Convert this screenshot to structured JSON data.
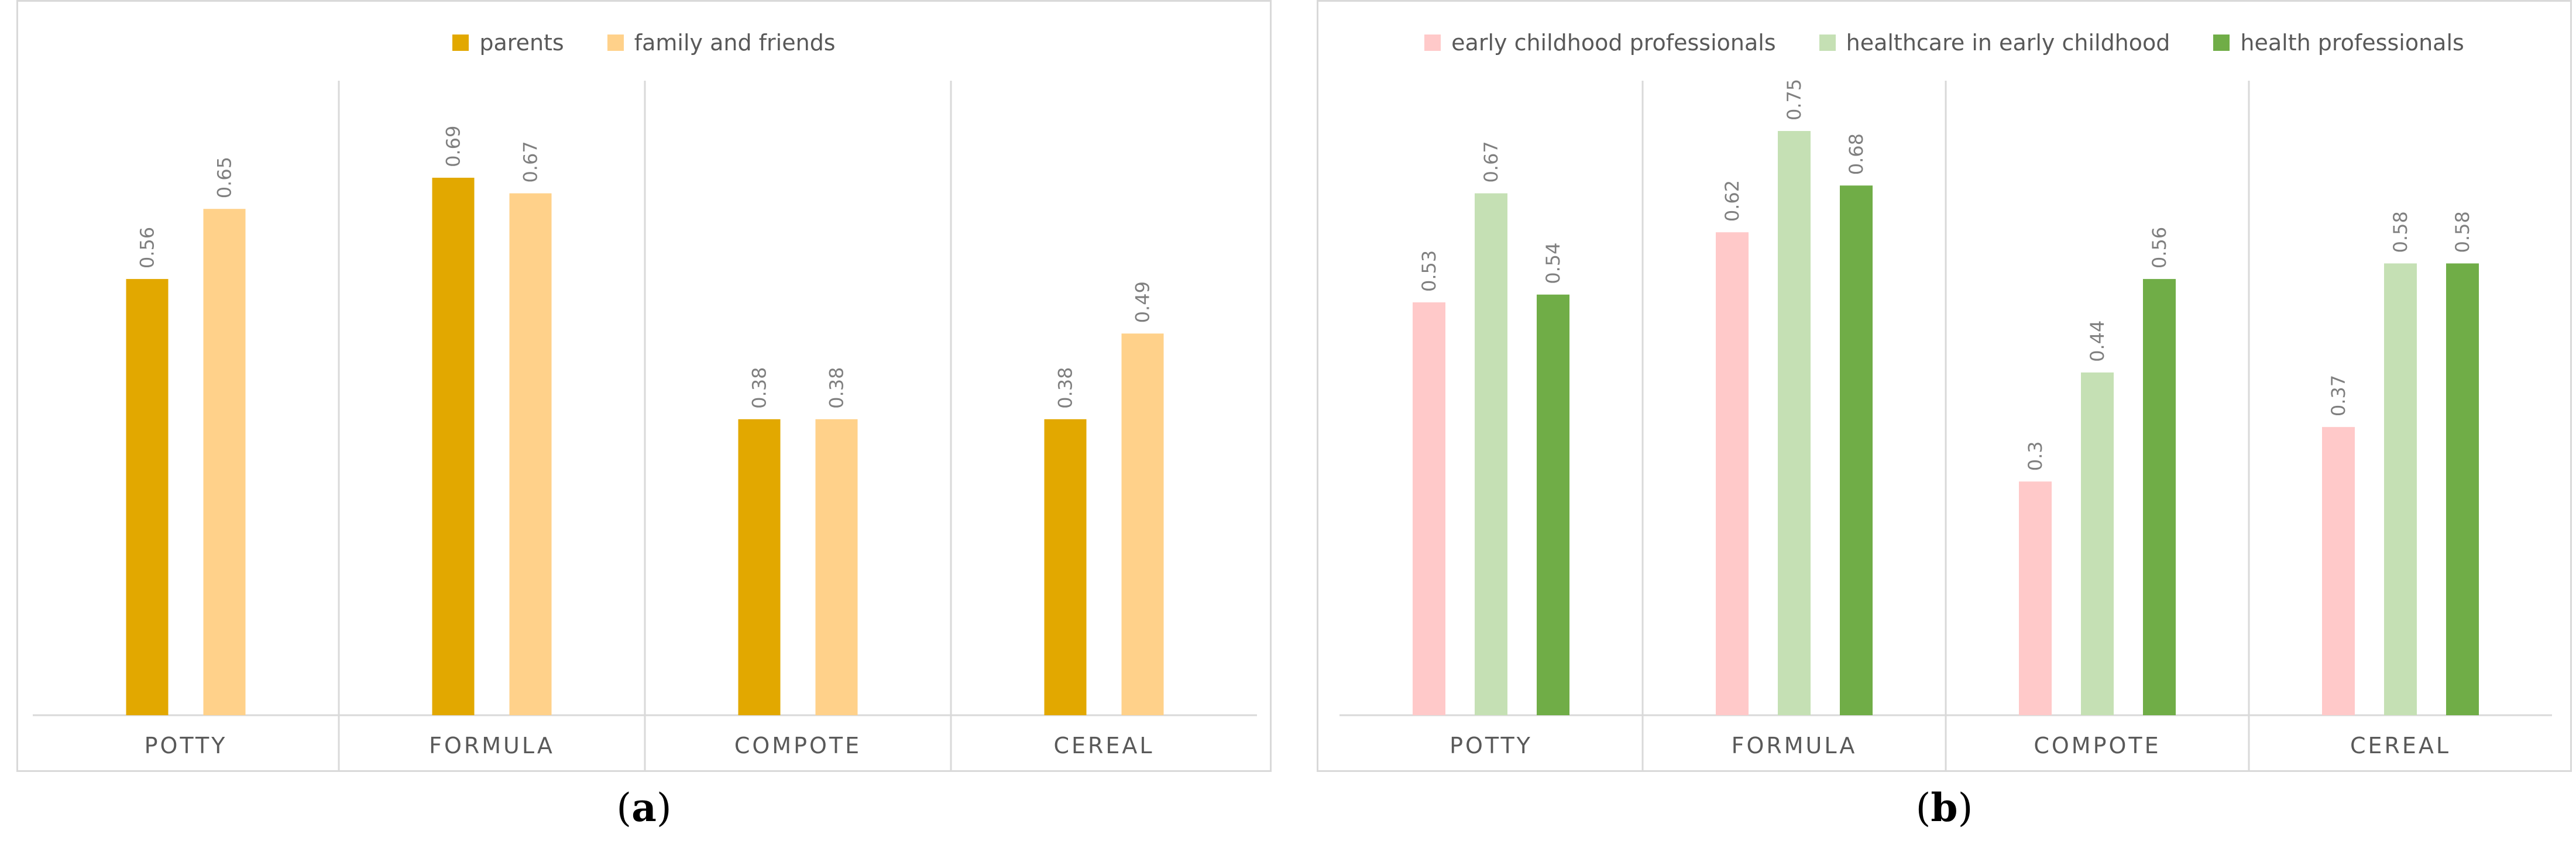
{
  "chart_data": [
    {
      "type": "bar",
      "panel_label": "a",
      "categories": [
        "POTTY",
        "FORMULA",
        "COMPOTE",
        "CEREAL"
      ],
      "series": [
        {
          "name": "parents",
          "color": "#E2A800",
          "values": [
            0.56,
            0.69,
            0.38,
            0.38
          ]
        },
        {
          "name": "family and friends",
          "color": "#FFD18A",
          "values": [
            0.65,
            0.67,
            0.38,
            0.49
          ]
        }
      ],
      "ylim": [
        0,
        0.8
      ],
      "legend": "top-center",
      "grid": false
    },
    {
      "type": "bar",
      "panel_label": "b",
      "categories": [
        "POTTY",
        "FORMULA",
        "COMPOTE",
        "CEREAL"
      ],
      "series": [
        {
          "name": "early childhood professionals",
          "color": "#FFC9C9",
          "values": [
            0.53,
            0.62,
            0.3,
            0.37
          ]
        },
        {
          "name": "healthcare in early childhood",
          "color": "#C5E0B4",
          "values": [
            0.67,
            0.75,
            0.44,
            0.58
          ]
        },
        {
          "name": "health professionals",
          "color": "#70AD47",
          "values": [
            0.54,
            0.68,
            0.56,
            0.58
          ]
        }
      ],
      "ylim": [
        0,
        0.8
      ],
      "legend": "top-center",
      "grid": false
    }
  ]
}
